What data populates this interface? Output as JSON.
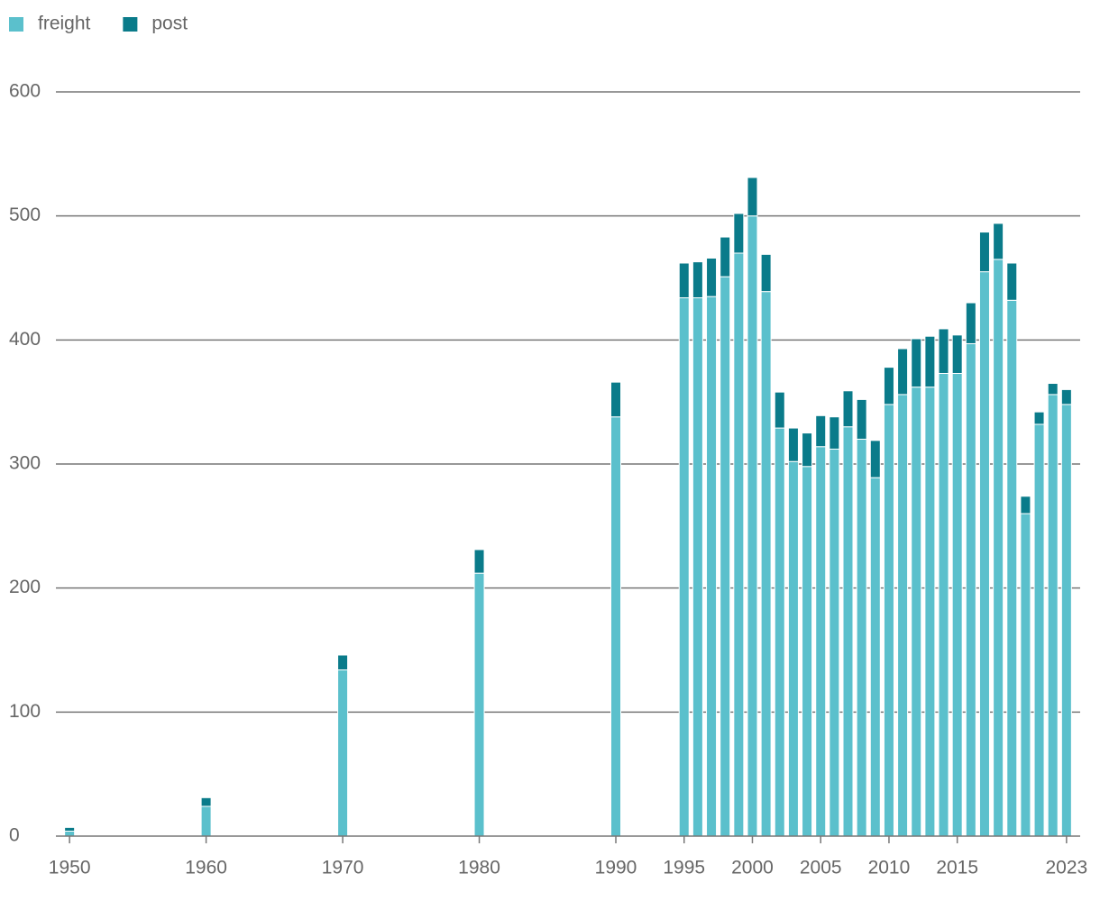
{
  "chart_data": {
    "type": "bar",
    "stacked": true,
    "x": [
      1950,
      1960,
      1970,
      1980,
      1990,
      1995,
      1996,
      1997,
      1998,
      1999,
      2000,
      2001,
      2002,
      2003,
      2004,
      2005,
      2006,
      2007,
      2008,
      2009,
      2010,
      2011,
      2012,
      2013,
      2014,
      2015,
      2016,
      2017,
      2018,
      2019,
      2020,
      2021,
      2022,
      2023
    ],
    "series": [
      {
        "name": "freight",
        "color": "#5bc0cc",
        "values": [
          4,
          24,
          134,
          212,
          338,
          434,
          434,
          435,
          451,
          470,
          500,
          439,
          329,
          302,
          298,
          314,
          312,
          330,
          320,
          289,
          348,
          356,
          362,
          362,
          373,
          373,
          397,
          455,
          465,
          432,
          260,
          332,
          356,
          348
        ]
      },
      {
        "name": "post",
        "color": "#0a7b8a",
        "values": [
          3,
          7,
          12,
          19,
          28,
          28,
          29,
          31,
          32,
          32,
          31,
          30,
          29,
          27,
          27,
          25,
          26,
          29,
          32,
          30,
          30,
          37,
          39,
          41,
          36,
          31,
          33,
          32,
          29,
          30,
          14,
          10,
          9,
          12
        ]
      }
    ],
    "xlim": [
      1949,
      2024
    ],
    "xticks": [
      1950,
      1960,
      1970,
      1980,
      1990,
      1995,
      2000,
      2005,
      2010,
      2015,
      2023
    ],
    "ylim": [
      0,
      600
    ],
    "yticks": [
      0,
      100,
      200,
      300,
      400,
      500,
      600
    ],
    "grid": true,
    "legend": "top-left"
  }
}
